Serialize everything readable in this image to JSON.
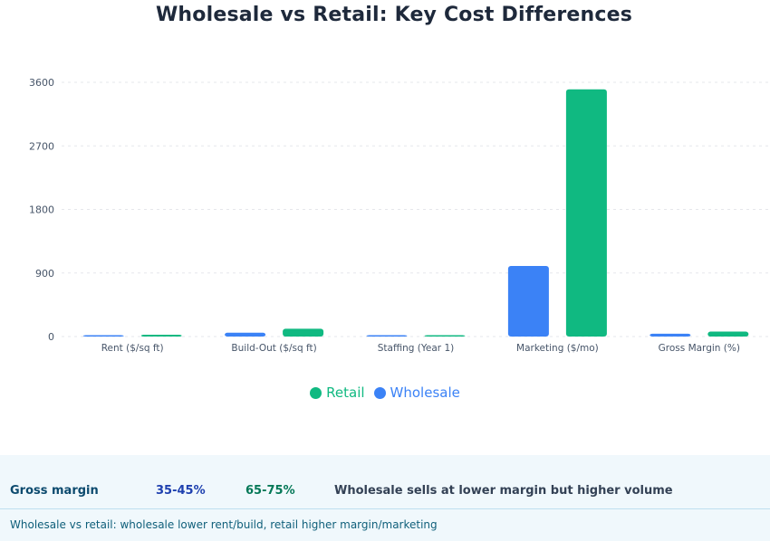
{
  "chart_data": {
    "type": "bar",
    "title": "Wholesale vs Retail: Key Cost Differences",
    "categories": [
      "Rent ($/sq ft)",
      "Build-Out ($/sq ft)",
      "Staffing (Year 1)",
      "Marketing ($/mo)",
      "Gross Margin (%)"
    ],
    "series": [
      {
        "name": "Wholesale",
        "color": "#3b82f6",
        "values": [
          8,
          55,
          3,
          1000,
          40
        ]
      },
      {
        "name": "Retail",
        "color": "#10b981",
        "values": [
          25,
          110,
          5,
          3500,
          70
        ]
      }
    ],
    "yticks": [
      "0",
      "900",
      "1800",
      "2700",
      "3600"
    ],
    "ylim": [
      0,
      3600
    ],
    "grid": true,
    "legend_placement": "bottom",
    "legend_order": [
      "Retail",
      "Wholesale"
    ]
  },
  "table": {
    "label": "Gross margin",
    "wholesale": "35-45%",
    "retail": "65-75%",
    "note": "Wholesale sells at lower margin but higher volume"
  },
  "caption": "Wholesale vs retail: wholesale lower rent/build, retail higher margin/marketing"
}
